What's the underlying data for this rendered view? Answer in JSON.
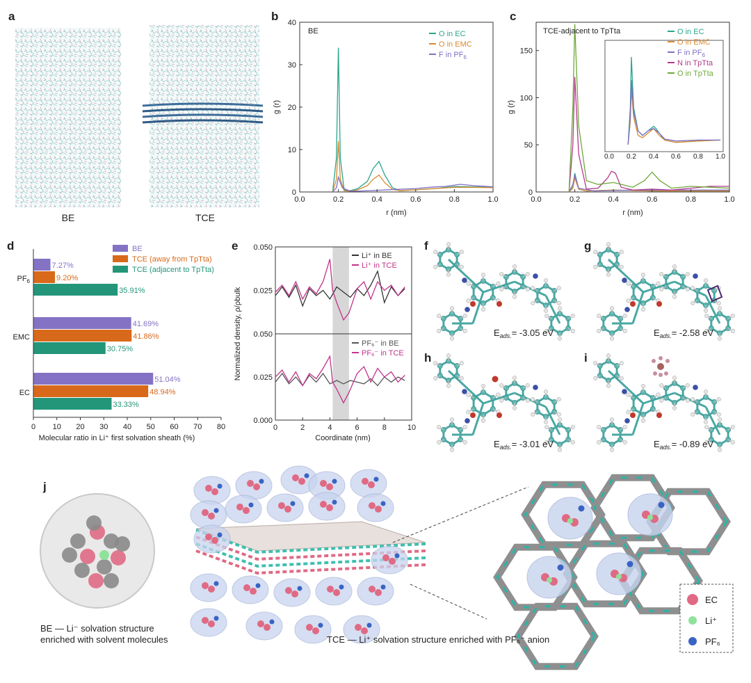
{
  "panel_labels": {
    "a": "a",
    "b": "b",
    "c": "c",
    "d": "d",
    "e": "e",
    "f": "f",
    "g": "g",
    "h": "h",
    "i": "i",
    "j": "j"
  },
  "panel_a": {
    "left_label": "BE",
    "right_label": "TCE"
  },
  "panel_b": {
    "box_title": "BE",
    "xlabel": "r (nm)",
    "ylabel": "g (r)",
    "colors": {
      "O in EC": "#2aa58e",
      "O in EMC": "#d88a2c",
      "F in PF6": "#7e6fc4"
    },
    "legend": [
      {
        "name": "O in EC",
        "color": "#2aa58e"
      },
      {
        "name": "O in EMC",
        "color": "#d88a2c"
      },
      {
        "name": "F in PF",
        "sub": "6",
        "color": "#7e6fc4"
      }
    ]
  },
  "panel_c": {
    "box_title": "TCE-adjacent to TpTta",
    "xlabel": "r (nm)",
    "ylabel": "g (r)",
    "legend": [
      {
        "name": "O in EC",
        "color": "#2aa58e"
      },
      {
        "name": "O in EMC",
        "color": "#d88a2c"
      },
      {
        "name": "F in PF",
        "sub": "6",
        "color": "#7e6fc4"
      },
      {
        "name": "N in TpTta",
        "color": "#b23a8c"
      },
      {
        "name": "O in TpTta",
        "color": "#6fa83a"
      }
    ]
  },
  "panel_d": {
    "xlabel": "Molecular ratio in Li⁺ first solvation sheath (%)",
    "legend": [
      {
        "name": "BE",
        "color": "#8472c4"
      },
      {
        "name": "TCE (away from TpTta)",
        "color": "#d8691a"
      },
      {
        "name": "TCE (adjacent to TpTta)",
        "color": "#23967a"
      }
    ]
  },
  "panel_e": {
    "xlabel": "Coordinate (nm)",
    "ylabel": "Normalized density, ρ/ρbulk",
    "top_legend": [
      {
        "name": "Li⁺ in BE",
        "color": "#333333"
      },
      {
        "name": "Li⁺ in TCE",
        "color": "#c2338a"
      }
    ],
    "bottom_legend": [
      {
        "name": "PF₆⁻ in BE",
        "color": "#555555"
      },
      {
        "name": "PF₆⁻ in TCE",
        "color": "#c2338a"
      }
    ]
  },
  "panel_fghi": [
    {
      "label": "f",
      "energy": "E",
      "sub": "ads.",
      "value": "= -3.05 eV"
    },
    {
      "label": "g",
      "energy": "E",
      "sub": "ads.",
      "value": "= -2.58 eV"
    },
    {
      "label": "h",
      "energy": "E",
      "sub": "ads.",
      "value": "= -3.01 eV"
    },
    {
      "label": "i",
      "energy": "E",
      "sub": "ads.",
      "value": "= -0.89 eV"
    }
  ],
  "panel_j": {
    "caption_left_1": "BE — Li⁻ solvation structure",
    "caption_left_2": "enriched with solvent molecules",
    "caption_center": "TCE — Li⁺ solvation structure enriched with PF₆⁻ anion",
    "legend": [
      {
        "name": "EC",
        "color": "#e06a84"
      },
      {
        "name": "Li⁺",
        "color": "#8ee39a"
      },
      {
        "name": "PF₆",
        "color": "#3a63c4"
      }
    ]
  },
  "chart_data": [
    {
      "type": "line",
      "panel": "b",
      "title": "BE",
      "xlabel": "r (nm)",
      "ylabel": "g (r)",
      "xlim": [
        0,
        1.0
      ],
      "ylim": [
        0,
        40
      ],
      "xticks": [
        0.0,
        0.2,
        0.4,
        0.6,
        0.8,
        1.0
      ],
      "yticks": [
        0,
        10,
        20,
        30,
        40
      ],
      "series": [
        {
          "name": "O in EC",
          "color": "#2aa58e",
          "x": [
            0.17,
            0.19,
            0.2,
            0.21,
            0.23,
            0.26,
            0.3,
            0.35,
            0.38,
            0.41,
            0.44,
            0.48,
            0.52,
            0.6,
            0.7,
            0.8,
            0.9,
            1.0
          ],
          "y": [
            0,
            8,
            34,
            8,
            0.5,
            0.3,
            0.8,
            2.5,
            5.5,
            7.2,
            4,
            1,
            0.3,
            0.5,
            0.8,
            1.3,
            1.2,
            1.1
          ]
        },
        {
          "name": "O in EMC",
          "color": "#d88a2c",
          "x": [
            0.17,
            0.19,
            0.2,
            0.21,
            0.23,
            0.26,
            0.3,
            0.35,
            0.38,
            0.41,
            0.44,
            0.48,
            0.52,
            0.6,
            0.7,
            0.8,
            0.9,
            1.0
          ],
          "y": [
            0,
            3,
            12,
            3,
            0.3,
            0.2,
            0.5,
            1.5,
            3,
            4,
            2.2,
            0.6,
            0.3,
            0.5,
            0.8,
            1.1,
            1.1,
            1.0
          ]
        },
        {
          "name": "F in PF6",
          "color": "#7e6fc4",
          "x": [
            0.17,
            0.19,
            0.2,
            0.22,
            0.26,
            0.3,
            0.4,
            0.5,
            0.6,
            0.7,
            0.75,
            0.83,
            0.9,
            1.0
          ],
          "y": [
            0,
            1,
            3.5,
            1,
            0.2,
            0.2,
            0.4,
            0.6,
            0.8,
            1.2,
            1.3,
            1.8,
            1.5,
            1.2
          ]
        }
      ]
    },
    {
      "type": "line",
      "panel": "c",
      "title": "TCE-adjacent to TpTta",
      "xlabel": "r (nm)",
      "ylabel": "g (r)",
      "xlim": [
        0,
        1.0
      ],
      "ylim": [
        0,
        180
      ],
      "xticks": [
        0.0,
        0.2,
        0.4,
        0.6,
        0.8,
        1.0
      ],
      "yticks": [
        0,
        50,
        100,
        150
      ],
      "series": [
        {
          "name": "O in EC",
          "color": "#2aa58e",
          "x": [
            0.17,
            0.19,
            0.2,
            0.22,
            0.26,
            0.4,
            0.6,
            0.8,
            1.0
          ],
          "y": [
            0,
            5,
            20,
            3,
            1,
            2,
            1,
            1,
            1
          ]
        },
        {
          "name": "O in EMC",
          "color": "#d88a2c",
          "x": [
            0.17,
            0.19,
            0.2,
            0.22,
            0.26,
            0.4,
            0.6,
            0.8,
            1.0
          ],
          "y": [
            0,
            4,
            15,
            3,
            1,
            2,
            1,
            1,
            1
          ]
        },
        {
          "name": "F in PF6",
          "color": "#7e6fc4",
          "x": [
            0.17,
            0.19,
            0.2,
            0.22,
            0.3,
            0.5,
            0.7,
            1.0
          ],
          "y": [
            0,
            8,
            18,
            4,
            1,
            2,
            2,
            2
          ]
        },
        {
          "name": "N in TpTta",
          "color": "#b23a8c",
          "x": [
            0.17,
            0.19,
            0.2,
            0.22,
            0.26,
            0.32,
            0.37,
            0.39,
            0.41,
            0.44,
            0.5,
            0.6,
            0.7,
            0.8,
            0.9,
            1.0
          ],
          "y": [
            0,
            50,
            122,
            40,
            3,
            4,
            15,
            22,
            20,
            5,
            2,
            3,
            2,
            4,
            6,
            6
          ]
        },
        {
          "name": "O in TpTta",
          "color": "#6fa83a",
          "x": [
            0.17,
            0.19,
            0.2,
            0.22,
            0.26,
            0.32,
            0.4,
            0.5,
            0.56,
            0.6,
            0.64,
            0.7,
            0.8,
            0.9,
            1.0
          ],
          "y": [
            0,
            90,
            178,
            70,
            12,
            8,
            10,
            5,
            12,
            21,
            12,
            4,
            6,
            5,
            4
          ]
        }
      ],
      "inset": {
        "xlim": [
          0,
          1.0
        ],
        "ylim": [
          0,
          22
        ],
        "xticks": [
          0.0,
          0.2,
          0.4,
          0.6,
          0.8,
          1.0
        ],
        "series": [
          {
            "name": "O in EC",
            "color": "#2aa58e",
            "x": [
              0.17,
              0.19,
              0.2,
              0.22,
              0.26,
              0.3,
              0.35,
              0.4,
              0.42,
              0.45,
              0.5,
              0.6,
              0.8,
              1.0
            ],
            "y": [
              0,
              8,
              19,
              8,
              3,
              2,
              3,
              4,
              3.5,
              2.5,
              1,
              0.5,
              0.8,
              1
            ]
          },
          {
            "name": "O in EMC",
            "color": "#d88a2c",
            "x": [
              0.17,
              0.19,
              0.2,
              0.22,
              0.26,
              0.3,
              0.35,
              0.4,
              0.45,
              0.5,
              0.6,
              0.8,
              1.0
            ],
            "y": [
              0,
              5,
              12,
              6,
              2,
              1.5,
              2.5,
              3.5,
              2,
              1,
              0.5,
              0.8,
              1
            ]
          },
          {
            "name": "F in PF6",
            "color": "#7e6fc4",
            "x": [
              0.17,
              0.19,
              0.2,
              0.22,
              0.26,
              0.3,
              0.35,
              0.4,
              0.45,
              0.5,
              0.6,
              0.8,
              1.0
            ],
            "y": [
              0,
              6,
              14,
              7,
              3,
              2,
              3,
              3.5,
              2.5,
              1.2,
              0.8,
              1,
              1
            ]
          }
        ]
      }
    },
    {
      "type": "bar",
      "orientation": "horizontal",
      "panel": "d",
      "xlabel": "Molecular ratio in Li⁺ first solvation sheath (%)",
      "xlim": [
        0,
        80
      ],
      "xticks": [
        0,
        10,
        20,
        30,
        40,
        50,
        60,
        70,
        80
      ],
      "categories": [
        "PF6",
        "EMC",
        "EC"
      ],
      "series": [
        {
          "name": "BE",
          "color": "#8472c4",
          "values": [
            7.27,
            41.69,
            51.04
          ],
          "labels": [
            "7.27%",
            "41.69%",
            "51.04%"
          ]
        },
        {
          "name": "TCE (away from TpTta)",
          "color": "#d8691a",
          "values": [
            9.2,
            41.86,
            48.94
          ],
          "labels": [
            "9.20%",
            "41.86%",
            "48.94%"
          ]
        },
        {
          "name": "TCE (adjacent to TpTta)",
          "color": "#23967a",
          "values": [
            35.91,
            30.75,
            33.33
          ],
          "labels": [
            "35.91%",
            "30.75%",
            "33.33%"
          ]
        }
      ]
    },
    {
      "type": "line",
      "panel": "e",
      "xlabel": "Coordinate (nm)",
      "ylabel": "Normalized density, ρ/ρbulk",
      "xlim": [
        0,
        10
      ],
      "xticks": [
        0,
        2,
        4,
        6,
        8,
        10
      ],
      "top_ylim": [
        0,
        0.05
      ],
      "top_yticks": [
        "0.050",
        "0.025"
      ],
      "bottom_ylim": [
        0,
        0.05
      ],
      "bottom_yticks": [
        "0.050",
        "0.025",
        "0.000"
      ],
      "shaded_region": [
        4.2,
        5.4
      ],
      "top_series": [
        {
          "name": "Li⁺ in BE",
          "color": "#333333",
          "x": [
            0,
            0.5,
            1,
            1.5,
            2,
            2.5,
            3,
            3.5,
            4,
            4.5,
            5,
            5.5,
            6,
            6.5,
            7,
            7.5,
            8,
            8.5,
            9,
            9.5
          ],
          "y": [
            0.022,
            0.027,
            0.021,
            0.028,
            0.016,
            0.026,
            0.022,
            0.025,
            0.02,
            0.027,
            0.024,
            0.021,
            0.026,
            0.022,
            0.028,
            0.036,
            0.018,
            0.027,
            0.022,
            0.026
          ]
        },
        {
          "name": "Li⁺ in TCE",
          "color": "#c2338a",
          "x": [
            0,
            0.5,
            1,
            1.5,
            2,
            2.5,
            3,
            3.5,
            4,
            4.2,
            4.5,
            5,
            5.4,
            6,
            6.5,
            7,
            7.5,
            8,
            8.5,
            9,
            9.5
          ],
          "y": [
            0.024,
            0.028,
            0.022,
            0.03,
            0.02,
            0.027,
            0.023,
            0.03,
            0.043,
            0.025,
            0.018,
            0.008,
            0.012,
            0.026,
            0.03,
            0.02,
            0.03,
            0.025,
            0.028,
            0.022,
            0.027
          ]
        }
      ],
      "bottom_series": [
        {
          "name": "PF₆⁻ in BE",
          "color": "#555555",
          "x": [
            0,
            0.5,
            1,
            1.5,
            2,
            2.5,
            3,
            3.5,
            4,
            4.5,
            5,
            5.5,
            6,
            6.5,
            7,
            7.5,
            8,
            8.5,
            9,
            9.5
          ],
          "y": [
            0.022,
            0.027,
            0.021,
            0.025,
            0.02,
            0.026,
            0.022,
            0.027,
            0.021,
            0.023,
            0.021,
            0.023,
            0.022,
            0.021,
            0.024,
            0.02,
            0.025,
            0.022,
            0.025,
            0.023
          ]
        },
        {
          "name": "PF₆⁻ in TCE",
          "color": "#c2338a",
          "x": [
            0,
            0.5,
            1,
            1.5,
            2,
            2.5,
            3,
            3.5,
            4,
            4.2,
            4.5,
            5,
            5.4,
            6,
            6.5,
            7,
            7.5,
            8,
            8.5,
            9,
            9.5
          ],
          "y": [
            0.025,
            0.029,
            0.022,
            0.028,
            0.02,
            0.027,
            0.024,
            0.03,
            0.037,
            0.022,
            0.018,
            0.01,
            0.016,
            0.027,
            0.031,
            0.022,
            0.03,
            0.025,
            0.028,
            0.022,
            0.026
          ]
        }
      ]
    }
  ]
}
